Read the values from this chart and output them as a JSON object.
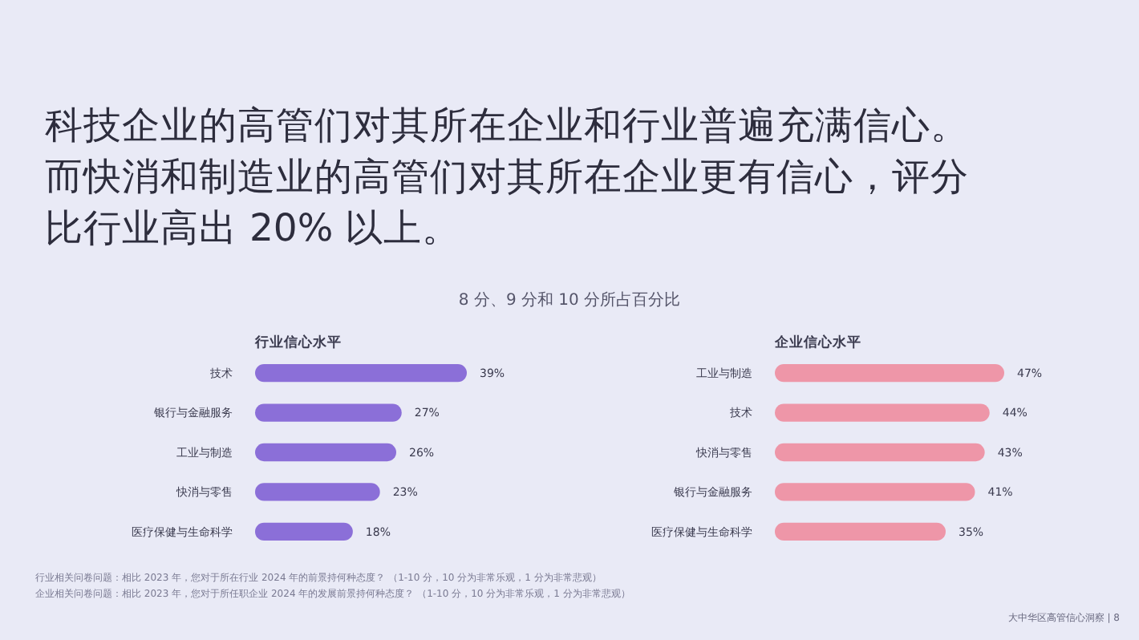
{
  "chart_data": [
    {
      "type": "bar",
      "orientation": "horizontal",
      "title": "行业信心水平",
      "categories": [
        "技术",
        "银行与金融服务",
        "工业与制造",
        "快消与零售",
        "医疗保健与生命科学"
      ],
      "values": [
        39,
        27,
        26,
        23,
        18
      ],
      "value_labels": [
        "39%",
        "27%",
        "26%",
        "23%",
        "18%"
      ],
      "color": "#8b6fd8",
      "annotations": [
        "科技企业的高管们对其所在企业和行业普遍充满信心。",
        "而快消和制造业的高管们对其所在企业更有信心，评分",
        "比行业高出 20% 以上。",
        "8 分、9 分和 10 分所占百分比",
        "行业相关问卷问题：相比 2023 年，您对于所在行业 2024 年的前景持何种态度？ （1-10 分，10 分为非常乐观，1 分为非常悲观）",
        "企业相关问卷问题：相比 2023 年，您对于所任职企业 2024 年的发展前景持何种态度？ （1-10 分，10 分为非常乐观，1 分为非常悲观）"
      ]
    },
    {
      "type": "bar",
      "orientation": "horizontal",
      "title": "企业信心水平",
      "categories": [
        "工业与制造",
        "技术",
        "快消与零售",
        "银行与金融服务",
        "医疗保健与生命科学"
      ],
      "values": [
        47,
        44,
        43,
        41,
        35
      ],
      "value_labels": [
        "47%",
        "44%",
        "43%",
        "41%",
        "35%"
      ],
      "color": "#ee96a8",
      "annotations": [
        "大中华区高管信心洞察 | 8"
      ]
    }
  ]
}
